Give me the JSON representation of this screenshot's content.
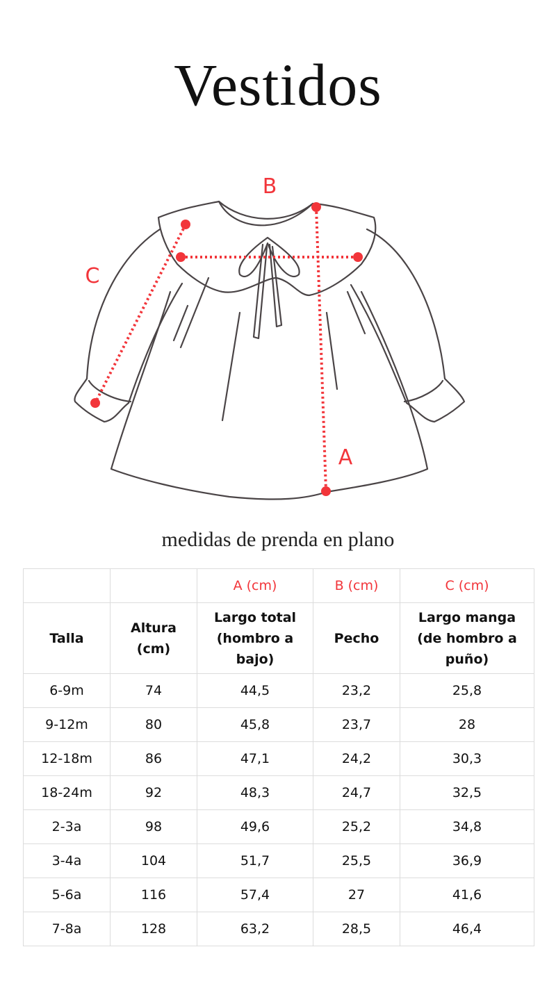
{
  "title": "Vestidos",
  "diagram": {
    "labels": {
      "a": "A",
      "b": "B",
      "c": "C"
    },
    "accent_color": "#f2353a",
    "line_color": "#4a4446"
  },
  "subtitle": "medidas de prenda en plano",
  "table": {
    "measure_codes": [
      "",
      "",
      "A (cm)",
      "B (cm)",
      "C (cm)"
    ],
    "headers": [
      "Talla",
      "Altura (cm)",
      "Largo total (hombro a bajo)",
      "Pecho",
      "Largo manga (de hombro a puño)"
    ],
    "rows": [
      [
        "6-9m",
        "74",
        "44,5",
        "23,2",
        "25,8"
      ],
      [
        "9-12m",
        "80",
        "45,8",
        "23,7",
        "28"
      ],
      [
        "12-18m",
        "86",
        "47,1",
        "24,2",
        "30,3"
      ],
      [
        "18-24m",
        "92",
        "48,3",
        "24,7",
        "32,5"
      ],
      [
        "2-3a",
        "98",
        "49,6",
        "25,2",
        "34,8"
      ],
      [
        "3-4a",
        "104",
        "51,7",
        "25,5",
        "36,9"
      ],
      [
        "5-6a",
        "116",
        "57,4",
        "27",
        "41,6"
      ],
      [
        "7-8a",
        "128",
        "63,2",
        "28,5",
        "46,4"
      ]
    ]
  }
}
